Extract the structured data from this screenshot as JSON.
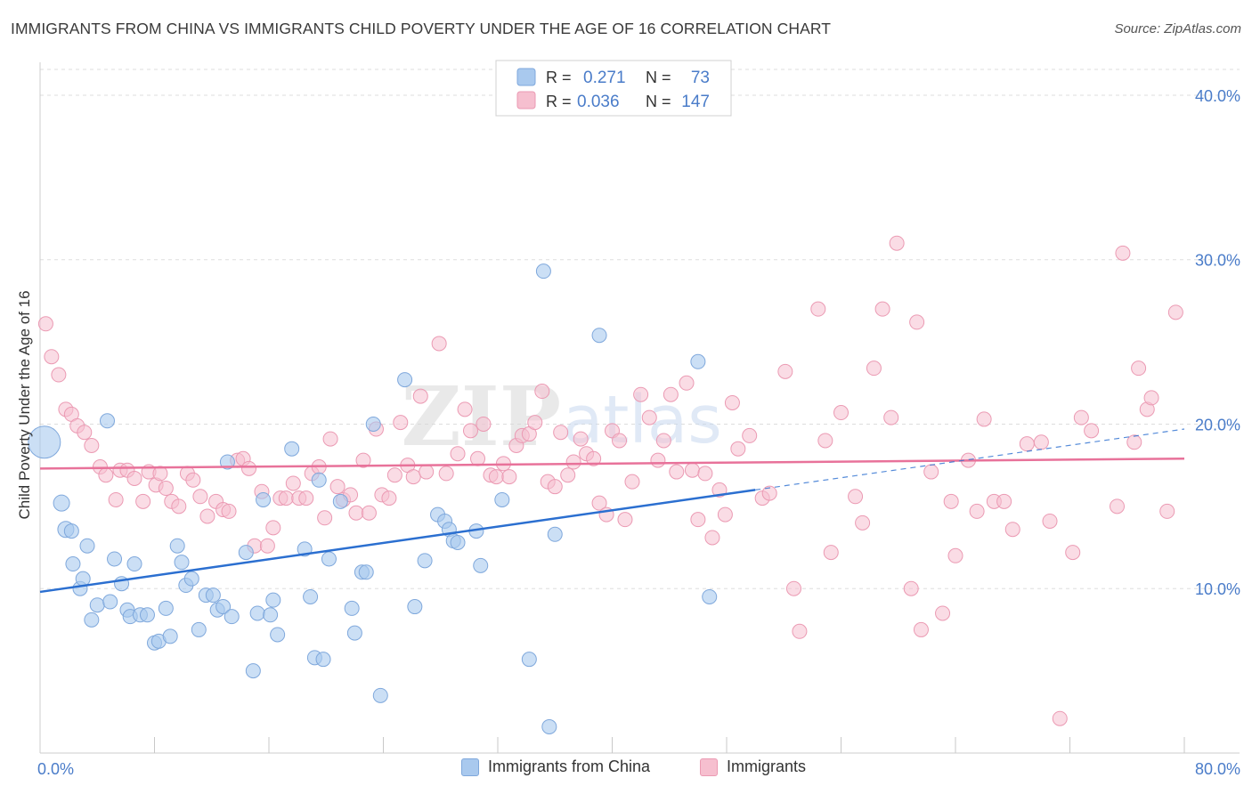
{
  "header": {
    "title": "IMMIGRANTS FROM CHINA VS IMMIGRANTS CHILD POVERTY UNDER THE AGE OF 16 CORRELATION CHART",
    "source": "Source: ZipAtlas.com"
  },
  "watermark": {
    "text_zip": "ZIP",
    "text_atlas": "atlas"
  },
  "colors": {
    "blue_fill": "#a9c9ee",
    "blue_stroke": "#7fa8dc",
    "blue_line": "#2b6fd0",
    "pink_fill": "#f6bfcf",
    "pink_stroke": "#eb9ab3",
    "pink_line": "#e8729a",
    "tick_label": "#4a7cc9",
    "grid": "#dddddd"
  },
  "chart_data": {
    "type": "scatter",
    "title": "IMMIGRANTS FROM CHINA VS IMMIGRANTS CHILD POVERTY UNDER THE AGE OF 16 CORRELATION CHART",
    "xlabel": "",
    "ylabel": "Child Poverty Under the Age of 16",
    "xlim": [
      0,
      80
    ],
    "ylim": [
      0,
      42
    ],
    "x_tick_labels": [
      "0.0%",
      "80.0%"
    ],
    "y_ticks": [
      10,
      20,
      30,
      40
    ],
    "y_tick_labels": [
      "10.0%",
      "20.0%",
      "30.0%",
      "40.0%"
    ],
    "grid": true,
    "legend_stats": [
      {
        "r_label": "R =",
        "r_value": "0.271",
        "n_label": "N =",
        "n_value": "73"
      },
      {
        "r_label": "R =",
        "r_value": "0.036",
        "n_label": "N =",
        "n_value": "147"
      }
    ],
    "series": [
      {
        "name": "Immigrants from China",
        "trend": {
          "x0": 0,
          "y0": 9.8,
          "x1": 50,
          "y1": 16.0,
          "dash_x1": 80,
          "dash_y1": 19.7
        },
        "points": [
          [
            0.3,
            18.9,
            18
          ],
          [
            1.5,
            15.2,
            9
          ],
          [
            1.8,
            13.6,
            9
          ],
          [
            2.2,
            13.5,
            8
          ],
          [
            2.3,
            11.5,
            8
          ],
          [
            2.8,
            10.0,
            8
          ],
          [
            3.0,
            10.6,
            8
          ],
          [
            3.3,
            12.6,
            8
          ],
          [
            3.6,
            8.1,
            8
          ],
          [
            4.0,
            9.0,
            8
          ],
          [
            4.7,
            20.2,
            8
          ],
          [
            4.9,
            9.2,
            8
          ],
          [
            5.2,
            11.8,
            8
          ],
          [
            5.7,
            10.3,
            8
          ],
          [
            6.1,
            8.7,
            8
          ],
          [
            6.3,
            8.3,
            8
          ],
          [
            6.6,
            11.5,
            8
          ],
          [
            7.0,
            8.4,
            8
          ],
          [
            7.5,
            8.4,
            8
          ],
          [
            8.0,
            6.7,
            8
          ],
          [
            8.3,
            6.8,
            8
          ],
          [
            8.8,
            8.8,
            8
          ],
          [
            9.1,
            7.1,
            8
          ],
          [
            9.6,
            12.6,
            8
          ],
          [
            9.9,
            11.6,
            8
          ],
          [
            10.2,
            10.2,
            8
          ],
          [
            10.6,
            10.6,
            8
          ],
          [
            11.1,
            7.5,
            8
          ],
          [
            11.6,
            9.6,
            8
          ],
          [
            12.1,
            9.6,
            8
          ],
          [
            12.4,
            8.7,
            8
          ],
          [
            12.8,
            8.9,
            8
          ],
          [
            13.1,
            17.7,
            8
          ],
          [
            13.4,
            8.3,
            8
          ],
          [
            14.4,
            12.2,
            8
          ],
          [
            14.9,
            5.0,
            8
          ],
          [
            15.2,
            8.5,
            8
          ],
          [
            15.6,
            15.4,
            8
          ],
          [
            16.1,
            8.4,
            8
          ],
          [
            16.3,
            9.3,
            8
          ],
          [
            16.6,
            7.2,
            8
          ],
          [
            17.6,
            18.5,
            8
          ],
          [
            18.5,
            12.4,
            8
          ],
          [
            18.9,
            9.5,
            8
          ],
          [
            19.2,
            5.8,
            8
          ],
          [
            19.5,
            16.6,
            8
          ],
          [
            19.8,
            5.7,
            8
          ],
          [
            20.2,
            11.8,
            8
          ],
          [
            21.0,
            15.3,
            8
          ],
          [
            21.8,
            8.8,
            8
          ],
          [
            22.0,
            7.3,
            8
          ],
          [
            22.5,
            11.0,
            8
          ],
          [
            22.8,
            11.0,
            8
          ],
          [
            23.3,
            20.0,
            8
          ],
          [
            23.8,
            3.5,
            8
          ],
          [
            25.5,
            22.7,
            8
          ],
          [
            26.2,
            8.9,
            8
          ],
          [
            26.9,
            11.7,
            8
          ],
          [
            27.8,
            14.5,
            8
          ],
          [
            28.3,
            14.1,
            8
          ],
          [
            28.6,
            13.6,
            8
          ],
          [
            28.9,
            12.9,
            8
          ],
          [
            29.2,
            12.8,
            8
          ],
          [
            30.5,
            13.5,
            8
          ],
          [
            30.8,
            11.4,
            8
          ],
          [
            32.3,
            15.4,
            8
          ],
          [
            34.2,
            5.7,
            8
          ],
          [
            35.2,
            29.3,
            8
          ],
          [
            35.6,
            1.6,
            8
          ],
          [
            36.0,
            13.3,
            8
          ],
          [
            39.1,
            25.4,
            8
          ],
          [
            46.0,
            23.8,
            8
          ],
          [
            46.8,
            9.5,
            8
          ]
        ]
      },
      {
        "name": "Immigrants",
        "trend": {
          "x0": 0,
          "y0": 17.3,
          "x1": 80,
          "y1": 17.9
        },
        "points": [
          [
            0.4,
            26.1,
            8
          ],
          [
            0.8,
            24.1,
            8
          ],
          [
            1.3,
            23.0,
            8
          ],
          [
            1.8,
            20.9,
            8
          ],
          [
            2.2,
            20.6,
            8
          ],
          [
            2.6,
            19.9,
            8
          ],
          [
            3.1,
            19.5,
            8
          ],
          [
            3.6,
            18.7,
            8
          ],
          [
            4.2,
            17.4,
            8
          ],
          [
            4.6,
            16.9,
            8
          ],
          [
            5.3,
            15.4,
            8
          ],
          [
            5.6,
            17.2,
            8
          ],
          [
            6.1,
            17.2,
            8
          ],
          [
            6.6,
            16.7,
            8
          ],
          [
            7.2,
            15.3,
            8
          ],
          [
            7.6,
            17.1,
            8
          ],
          [
            8.1,
            16.3,
            8
          ],
          [
            8.4,
            17.0,
            8
          ],
          [
            8.8,
            16.1,
            8
          ],
          [
            9.2,
            15.3,
            8
          ],
          [
            9.7,
            15.0,
            8
          ],
          [
            10.3,
            17.0,
            8
          ],
          [
            10.7,
            16.6,
            8
          ],
          [
            11.2,
            15.6,
            8
          ],
          [
            11.7,
            14.4,
            8
          ],
          [
            12.3,
            15.3,
            8
          ],
          [
            12.8,
            14.8,
            8
          ],
          [
            13.2,
            14.7,
            8
          ],
          [
            13.8,
            17.8,
            8
          ],
          [
            14.2,
            17.9,
            8
          ],
          [
            14.6,
            17.3,
            8
          ],
          [
            15.0,
            12.6,
            8
          ],
          [
            15.5,
            15.9,
            8
          ],
          [
            15.9,
            12.6,
            8
          ],
          [
            16.3,
            13.7,
            8
          ],
          [
            16.8,
            15.5,
            8
          ],
          [
            17.2,
            15.5,
            8
          ],
          [
            17.7,
            16.4,
            8
          ],
          [
            18.1,
            15.5,
            8
          ],
          [
            18.6,
            15.5,
            8
          ],
          [
            19.0,
            17.0,
            8
          ],
          [
            19.5,
            17.4,
            8
          ],
          [
            19.9,
            14.3,
            8
          ],
          [
            20.3,
            19.1,
            8
          ],
          [
            20.8,
            16.2,
            8
          ],
          [
            21.2,
            15.4,
            8
          ],
          [
            21.7,
            15.7,
            8
          ],
          [
            22.1,
            14.6,
            8
          ],
          [
            22.6,
            17.8,
            8
          ],
          [
            23.0,
            14.6,
            8
          ],
          [
            23.5,
            19.7,
            8
          ],
          [
            23.9,
            15.7,
            8
          ],
          [
            24.4,
            15.5,
            8
          ],
          [
            24.8,
            16.9,
            8
          ],
          [
            25.2,
            20.1,
            8
          ],
          [
            25.7,
            17.5,
            8
          ],
          [
            26.1,
            16.8,
            8
          ],
          [
            26.6,
            21.7,
            8
          ],
          [
            27.0,
            17.1,
            8
          ],
          [
            27.9,
            24.9,
            8
          ],
          [
            28.4,
            17.0,
            8
          ],
          [
            29.2,
            18.2,
            8
          ],
          [
            29.7,
            20.9,
            8
          ],
          [
            30.1,
            19.6,
            8
          ],
          [
            30.6,
            17.9,
            8
          ],
          [
            31.0,
            20.0,
            8
          ],
          [
            31.5,
            16.9,
            8
          ],
          [
            31.9,
            16.8,
            8
          ],
          [
            32.4,
            17.6,
            8
          ],
          [
            32.8,
            16.8,
            8
          ],
          [
            33.3,
            18.7,
            8
          ],
          [
            33.7,
            19.3,
            8
          ],
          [
            34.2,
            19.4,
            8
          ],
          [
            34.6,
            20.1,
            8
          ],
          [
            35.1,
            22.0,
            8
          ],
          [
            35.5,
            16.5,
            8
          ],
          [
            36.0,
            16.2,
            8
          ],
          [
            36.4,
            19.5,
            8
          ],
          [
            36.9,
            16.9,
            8
          ],
          [
            37.3,
            17.7,
            8
          ],
          [
            37.8,
            19.1,
            8
          ],
          [
            38.2,
            18.2,
            8
          ],
          [
            38.7,
            17.9,
            8
          ],
          [
            39.1,
            15.2,
            8
          ],
          [
            39.6,
            14.5,
            8
          ],
          [
            40.0,
            19.6,
            8
          ],
          [
            40.5,
            19.0,
            8
          ],
          [
            40.9,
            14.2,
            8
          ],
          [
            41.4,
            16.5,
            8
          ],
          [
            42.0,
            21.8,
            8
          ],
          [
            42.6,
            20.4,
            8
          ],
          [
            43.2,
            17.8,
            8
          ],
          [
            43.6,
            19.0,
            8
          ],
          [
            44.1,
            21.8,
            8
          ],
          [
            44.5,
            17.1,
            8
          ],
          [
            45.2,
            22.5,
            8
          ],
          [
            45.6,
            17.2,
            8
          ],
          [
            46.0,
            14.2,
            8
          ],
          [
            46.5,
            17.0,
            8
          ],
          [
            47.0,
            13.1,
            8
          ],
          [
            47.5,
            16.0,
            8
          ],
          [
            47.9,
            14.5,
            8
          ],
          [
            48.4,
            21.3,
            8
          ],
          [
            48.8,
            18.5,
            8
          ],
          [
            49.6,
            19.3,
            8
          ],
          [
            50.5,
            15.5,
            8
          ],
          [
            51.0,
            15.8,
            8
          ],
          [
            52.1,
            23.2,
            8
          ],
          [
            52.7,
            10.0,
            8
          ],
          [
            53.1,
            7.4,
            8
          ],
          [
            54.4,
            27.0,
            8
          ],
          [
            54.9,
            19.0,
            8
          ],
          [
            55.3,
            12.2,
            8
          ],
          [
            56.0,
            20.7,
            8
          ],
          [
            57.0,
            15.6,
            8
          ],
          [
            57.5,
            14.0,
            8
          ],
          [
            58.3,
            23.4,
            8
          ],
          [
            58.9,
            27.0,
            8
          ],
          [
            59.5,
            20.4,
            8
          ],
          [
            59.9,
            31.0,
            8
          ],
          [
            60.9,
            10.0,
            8
          ],
          [
            61.3,
            26.2,
            8
          ],
          [
            61.6,
            7.5,
            8
          ],
          [
            62.3,
            17.1,
            8
          ],
          [
            63.1,
            8.5,
            8
          ],
          [
            63.7,
            15.3,
            8
          ],
          [
            64.0,
            12.0,
            8
          ],
          [
            64.9,
            17.8,
            8
          ],
          [
            65.5,
            14.7,
            8
          ],
          [
            66.0,
            20.3,
            8
          ],
          [
            66.7,
            15.3,
            8
          ],
          [
            67.4,
            15.3,
            8
          ],
          [
            68.0,
            13.6,
            8
          ],
          [
            69.0,
            18.8,
            8
          ],
          [
            70.0,
            18.9,
            8
          ],
          [
            70.6,
            14.1,
            8
          ],
          [
            71.3,
            2.1,
            8
          ],
          [
            72.2,
            12.2,
            8
          ],
          [
            72.8,
            20.4,
            8
          ],
          [
            73.5,
            19.6,
            8
          ],
          [
            75.3,
            15.0,
            8
          ],
          [
            75.7,
            30.4,
            8
          ],
          [
            76.5,
            18.9,
            8
          ],
          [
            76.8,
            23.4,
            8
          ],
          [
            77.4,
            20.9,
            8
          ],
          [
            77.7,
            21.6,
            8
          ],
          [
            78.8,
            14.7,
            8
          ],
          [
            79.4,
            26.8,
            8
          ]
        ]
      }
    ]
  }
}
